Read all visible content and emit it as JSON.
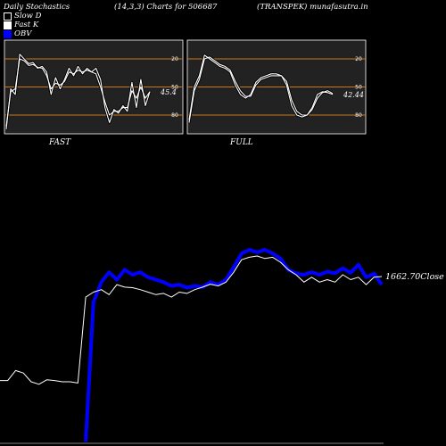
{
  "header": {
    "left": "Daily Stochastics",
    "middle": "(14,3,3) Charts for 506687",
    "right": "(TRANSPEK) munafasutra.in"
  },
  "legend": [
    {
      "label": "Slow  D",
      "color": "#000000"
    },
    {
      "label": "Fast K",
      "color": "#ffffff"
    },
    {
      "label": "OBV",
      "color": "#0000ff"
    }
  ],
  "colors": {
    "obv": "#0000ff",
    "price": "#ffffff",
    "level": "#c8781e",
    "panel_bg": "#222222"
  },
  "chart_data": [
    {
      "type": "line",
      "title": "FAST",
      "ylim": [
        0,
        100
      ],
      "levels": [
        20,
        50,
        80
      ],
      "tick_labels": [
        "80",
        "50",
        "20"
      ],
      "value_label": "45.4",
      "series": [
        {
          "values": [
            5,
            48,
            42,
            85,
            80,
            75,
            76,
            70,
            72,
            66,
            42,
            60,
            48,
            58,
            70,
            62,
            72,
            64,
            70,
            66,
            70,
            58,
            28,
            12,
            26,
            22,
            30,
            24,
            55,
            28,
            58,
            30,
            45
          ]
        },
        {
          "values": [
            8,
            45,
            48,
            80,
            78,
            73,
            74,
            71,
            70,
            62,
            48,
            54,
            52,
            56,
            66,
            64,
            68,
            66,
            68,
            66,
            64,
            50,
            34,
            20,
            24,
            24,
            28,
            28,
            46,
            38,
            50,
            38,
            45
          ]
        }
      ]
    },
    {
      "type": "line",
      "title": "FULL",
      "ylim": [
        0,
        100
      ],
      "levels": [
        20,
        50,
        80
      ],
      "tick_labels": [
        "80",
        "50",
        "20"
      ],
      "value_label": "42.44",
      "series": [
        {
          "values": [
            15,
            50,
            62,
            84,
            80,
            76,
            72,
            70,
            66,
            52,
            42,
            38,
            42,
            55,
            60,
            62,
            64,
            64,
            62,
            52,
            30,
            20,
            18,
            20,
            28,
            42,
            45,
            44,
            42
          ]
        },
        {
          "values": [
            12,
            46,
            58,
            80,
            82,
            78,
            74,
            72,
            68,
            56,
            46,
            40,
            40,
            52,
            58,
            60,
            62,
            62,
            62,
            56,
            36,
            24,
            20,
            20,
            26,
            38,
            44,
            46,
            43
          ]
        }
      ]
    },
    {
      "type": "line",
      "ylim": [
        1000,
        2200
      ],
      "value_label": "1662.70",
      "value_suffix": "Close",
      "series": [
        {
          "values": [
            1245,
            1245,
            1285,
            1275,
            1240,
            1230,
            1248,
            1245,
            1240,
            1240,
            1235,
            1580,
            1600,
            1610,
            1590,
            1630,
            1620,
            1618,
            1610,
            1600,
            1590,
            1595,
            1580,
            1600,
            1595,
            1610,
            1620,
            1632,
            1625,
            1640,
            1680,
            1730,
            1740,
            1745,
            1735,
            1740,
            1720,
            1690,
            1670,
            1640,
            1660,
            1640,
            1650,
            1640,
            1670,
            1650,
            1660,
            1630,
            1660,
            1662.7
          ]
        },
        {
          "values": [
            null,
            null,
            null,
            null,
            null,
            null,
            null,
            null,
            null,
            null,
            null,
            1000,
            1560,
            1640,
            1680,
            1650,
            1690,
            1670,
            1680,
            1660,
            1650,
            1640,
            1625,
            1630,
            1618,
            1625,
            1620,
            1640,
            1630,
            1650,
            1700,
            1755,
            1770,
            1760,
            1770,
            1755,
            1735,
            1690,
            1675,
            1670,
            1680,
            1670,
            1682,
            1676,
            1696,
            1678,
            1710,
            1660,
            1674,
            1630
          ]
        }
      ]
    }
  ]
}
